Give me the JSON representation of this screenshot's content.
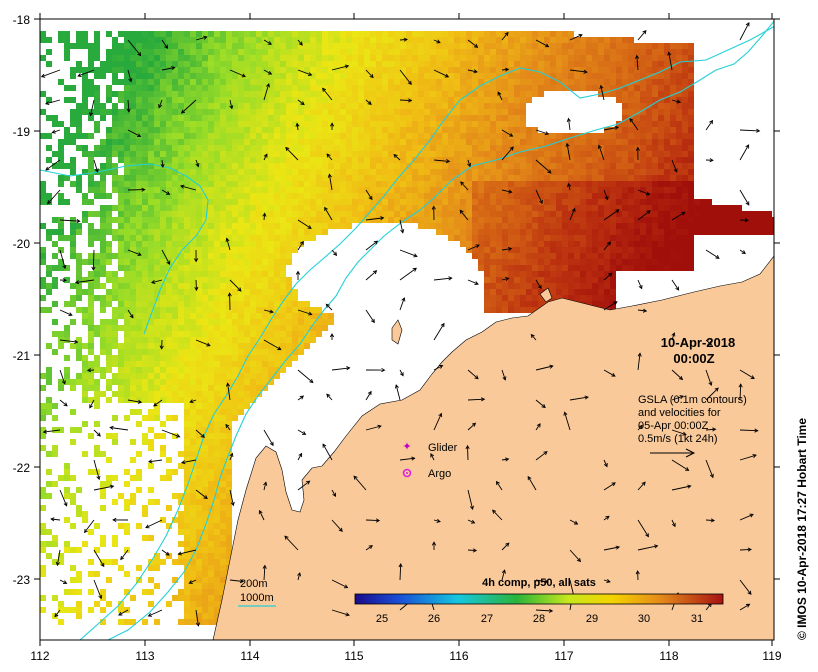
{
  "map": {
    "lon_ticks": [
      "112",
      "113",
      "114",
      "115",
      "116",
      "117",
      "118",
      "119"
    ],
    "lat_ticks": [
      "-18",
      "-19",
      "-20",
      "-21",
      "-22",
      "-23"
    ],
    "date": "10-Apr-2018",
    "time": "00:00Z",
    "gsla_note": [
      "GSLA (0.1m contours)",
      "and velocities for",
      "05-Apr 00:00Z",
      "0.5m/s (1kt 24h)"
    ],
    "legend": {
      "glider": "Glider",
      "argo": "Argo"
    },
    "bathymetry": {
      "contour_1": "200m",
      "contour_2": "1000m"
    },
    "colorbar": {
      "title": "4h comp, p50, all sats",
      "ticks": [
        "25",
        "26",
        "27",
        "28",
        "29",
        "30",
        "31"
      ],
      "range": [
        24.5,
        31.5
      ]
    },
    "credit": "© IMOS 10-Apr-2018 17:27 Hobart Time",
    "colors": {
      "land": "#f9c99a",
      "contour": "#22d0d8",
      "glider_marker": "#c000c0",
      "argo_marker": "#e020e0"
    }
  }
}
